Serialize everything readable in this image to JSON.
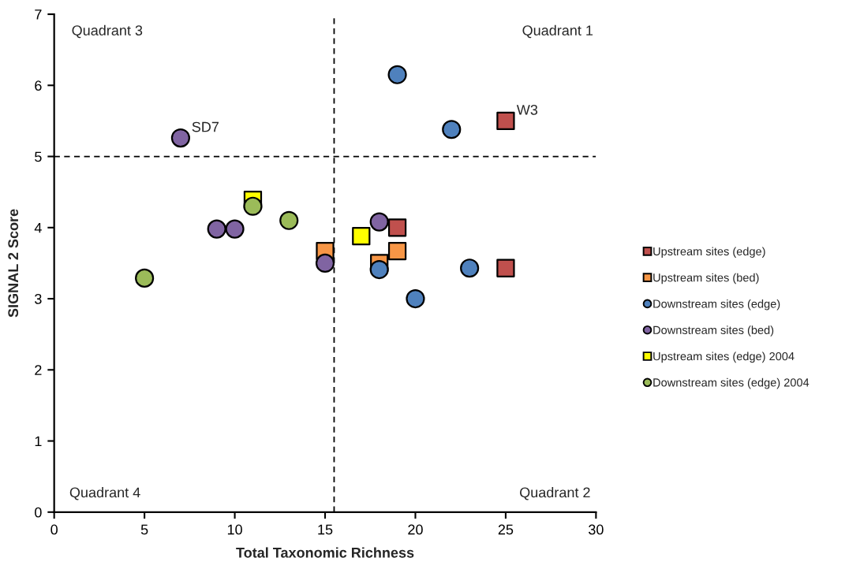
{
  "chart_data": {
    "type": "scatter",
    "xlabel": "Total Taxonomic Richness",
    "ylabel": "SIGNAL 2 Score",
    "xlim": [
      0,
      30
    ],
    "xticks": [
      0,
      5,
      10,
      15,
      20,
      25,
      30
    ],
    "ylim": [
      0,
      7
    ],
    "yticks": [
      0,
      1,
      2,
      3,
      4,
      5,
      6,
      7
    ],
    "grid": false,
    "legend": "right",
    "series": [
      {
        "name": "Upstream sites (edge)",
        "color": "#c0504d",
        "marker": "square",
        "x": [
          25,
          25,
          19
        ],
        "values": [
          5.5,
          3.43,
          4.0
        ]
      },
      {
        "name": "Upstream sites (bed)",
        "color": "#f79646",
        "marker": "square",
        "x": [
          15,
          18,
          19
        ],
        "values": [
          3.67,
          3.5,
          3.67
        ]
      },
      {
        "name": "Downstream sites (edge)",
        "color": "#4f81bd",
        "marker": "circle",
        "x": [
          19,
          22,
          18,
          20,
          23
        ],
        "values": [
          6.15,
          5.38,
          3.41,
          3.0,
          3.43
        ]
      },
      {
        "name": "Downstream sites (bed)",
        "color": "#8064a2",
        "marker": "circle",
        "x": [
          7,
          9,
          10,
          15,
          18
        ],
        "values": [
          5.26,
          3.98,
          3.98,
          3.5,
          4.08
        ]
      },
      {
        "name": "Upstream sites (edge) 2004",
        "color": "#ffff00",
        "marker": "square",
        "x": [
          11,
          17
        ],
        "values": [
          4.39,
          3.88
        ]
      },
      {
        "name": "Downstream sites (edge) 2004",
        "color": "#9bbb59",
        "marker": "circle",
        "x": [
          5,
          11,
          13
        ],
        "values": [
          3.29,
          4.3,
          4.1
        ]
      }
    ],
    "ref_lines": [
      {
        "axis": "x",
        "value": 15.5,
        "color": "#000000",
        "line_style": "dashed"
      },
      {
        "axis": "y",
        "value": 5,
        "color": "#000000",
        "line_style": "dashed"
      }
    ],
    "annotations": [
      "Quadrant 3",
      "Quadrant 1",
      "Quadrant 4",
      "Quadrant 2",
      {
        "text": "SD7",
        "x": 7,
        "y": 5.26
      },
      {
        "text": "W3",
        "x": 25,
        "y": 5.5
      }
    ]
  }
}
